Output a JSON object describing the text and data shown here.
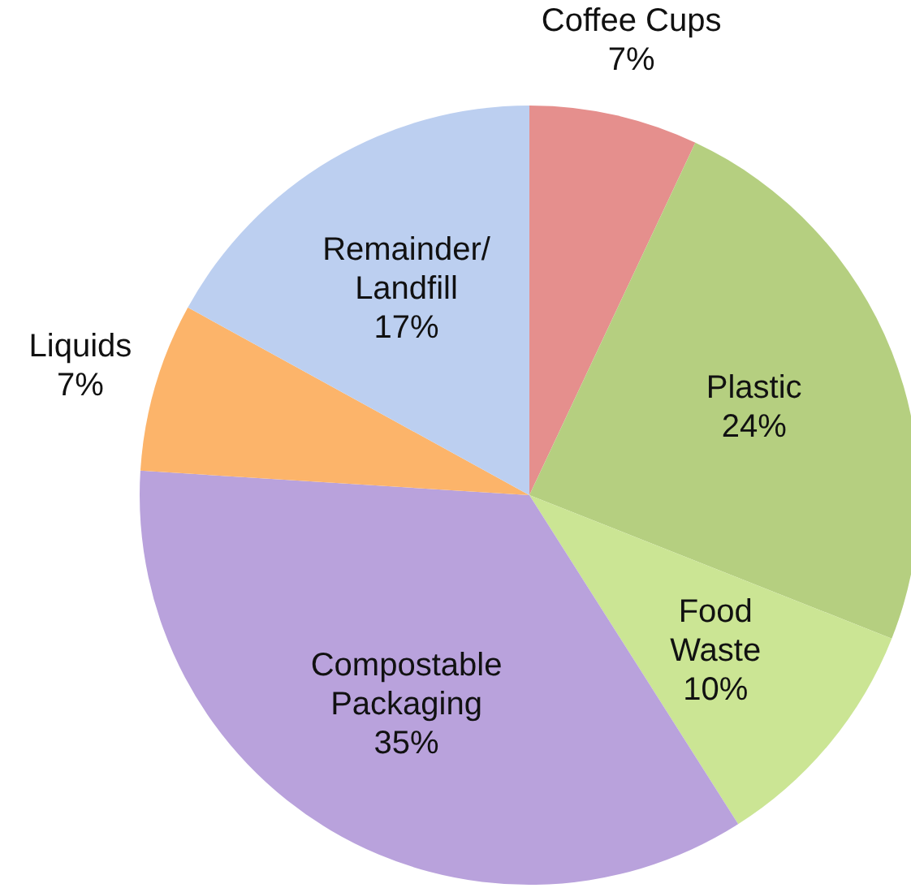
{
  "chart_data": {
    "type": "pie",
    "categories": [
      "Coffee Cups",
      "Plastic",
      "Food Waste",
      "Compostable Packaging",
      "Liquids",
      "Remainder/Landfill"
    ],
    "values": [
      7,
      24,
      10,
      35,
      7,
      17
    ],
    "value_labels": [
      "7%",
      "24%",
      "10%",
      "35%",
      "7%",
      "17%"
    ],
    "colors": [
      "#e58f8d",
      "#b5cf80",
      "#cbe594",
      "#b9a2dc",
      "#fcb46a",
      "#bccff0"
    ]
  }
}
